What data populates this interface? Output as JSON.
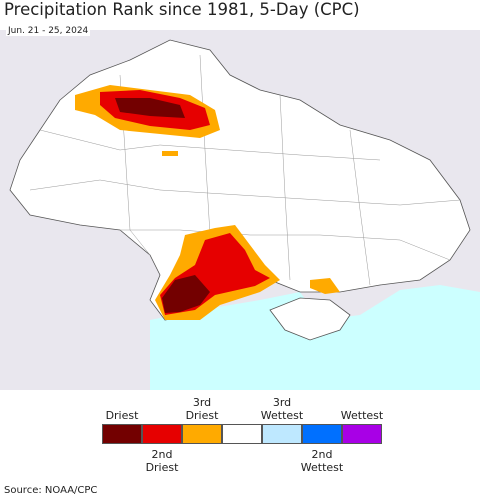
{
  "header": {
    "title": "Precipitation Rank since 1981, 5-Day (CPC)",
    "subtitle": "Jun. 21 - 25, 2024"
  },
  "legend": {
    "items": [
      {
        "color": "#730000",
        "label": "Driest"
      },
      {
        "color": "#e60000",
        "label": "2nd Driest"
      },
      {
        "color": "#ffaa00",
        "label": "3rd Driest"
      },
      {
        "color": "#ffffff",
        "label": null
      },
      {
        "color": "#bee8ff",
        "label": "3rd Wettest"
      },
      {
        "color": "#0070ff",
        "label": "2nd Wettest"
      },
      {
        "color": "#a800e6",
        "label": "Wettest"
      }
    ]
  },
  "footer": {
    "source": "Source: NOAA/CPC"
  }
}
